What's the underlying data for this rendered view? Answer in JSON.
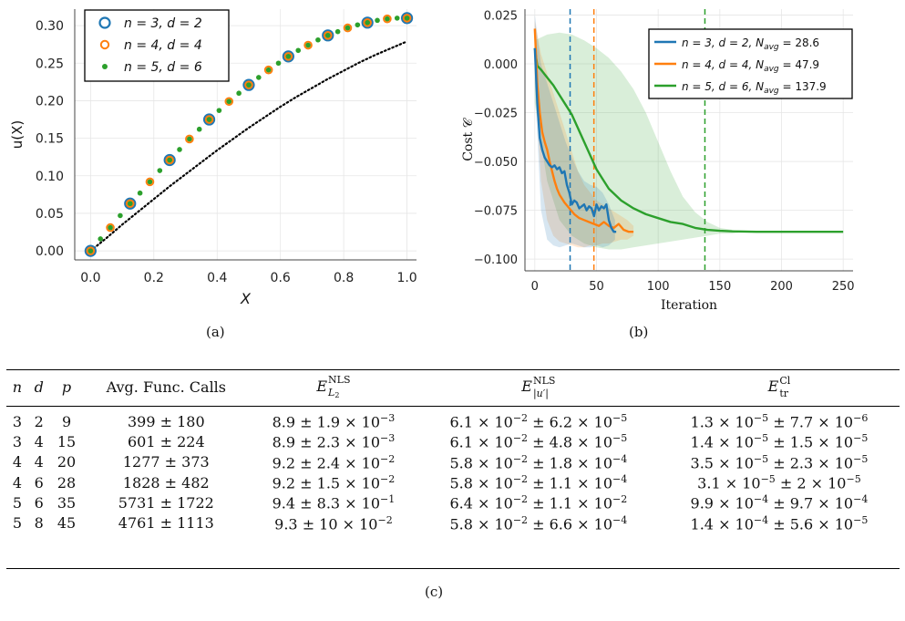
{
  "chart_data": [
    {
      "type": "scatter",
      "panel": "(a)",
      "xlabel": "X",
      "ylabel": "u(X)",
      "xlim": [
        -0.05,
        1.03
      ],
      "ylim": [
        -0.012,
        0.322
      ],
      "xticks": [
        "0.0",
        "0.2",
        "0.4",
        "0.6",
        "0.8",
        "1.0"
      ],
      "yticks": [
        "0.00",
        "0.05",
        "0.10",
        "0.15",
        "0.20",
        "0.25",
        "0.30"
      ],
      "legend": [
        "n = 3,  d = 2",
        "n = 4,  d = 4",
        "n = 5,  d = 6"
      ],
      "legend_position": "top-left",
      "series": [
        {
          "name": "n = 3,  d = 2",
          "marker": "open-circle",
          "color": "#1f77b4",
          "x": [
            0,
            0.125,
            0.25,
            0.375,
            0.5,
            0.625,
            0.75,
            0.875,
            1.0
          ],
          "y": [
            0.0,
            0.063,
            0.121,
            0.175,
            0.221,
            0.259,
            0.287,
            0.304,
            0.31
          ]
        },
        {
          "name": "n = 4,  d = 4",
          "marker": "open-circle",
          "color": "#ff7f0e",
          "x": [
            0,
            0.0625,
            0.125,
            0.1875,
            0.25,
            0.3125,
            0.375,
            0.4375,
            0.5,
            0.5625,
            0.625,
            0.6875,
            0.75,
            0.8125,
            0.875,
            0.9375,
            1.0
          ],
          "y": [
            0.0,
            0.031,
            0.063,
            0.092,
            0.121,
            0.149,
            0.175,
            0.199,
            0.221,
            0.241,
            0.259,
            0.274,
            0.287,
            0.297,
            0.304,
            0.309,
            0.31
          ]
        },
        {
          "name": "n = 5,  d = 6",
          "marker": "dot",
          "color": "#2ca02c",
          "x": [
            0,
            0.03125,
            0.0625,
            0.09375,
            0.125,
            0.15625,
            0.1875,
            0.21875,
            0.25,
            0.28125,
            0.3125,
            0.34375,
            0.375,
            0.40625,
            0.4375,
            0.46875,
            0.5,
            0.53125,
            0.5625,
            0.59375,
            0.625,
            0.65625,
            0.6875,
            0.71875,
            0.75,
            0.78125,
            0.8125,
            0.84375,
            0.875,
            0.90625,
            0.9375,
            0.96875,
            1.0
          ],
          "y": [
            0.0,
            0.016,
            0.031,
            0.047,
            0.063,
            0.077,
            0.092,
            0.107,
            0.121,
            0.135,
            0.149,
            0.162,
            0.175,
            0.187,
            0.199,
            0.21,
            0.221,
            0.231,
            0.241,
            0.25,
            0.259,
            0.267,
            0.274,
            0.281,
            0.287,
            0.292,
            0.297,
            0.301,
            0.304,
            0.307,
            0.309,
            0.31,
            0.31
          ]
        },
        {
          "marker": "dotted-line",
          "color": "#000000",
          "x": [
            0,
            0.05,
            0.1,
            0.15,
            0.2,
            0.25,
            0.3,
            0.35,
            0.4,
            0.45,
            0.5,
            0.55,
            0.6,
            0.65,
            0.7,
            0.75,
            0.8,
            0.85,
            0.9,
            0.95,
            1.0
          ],
          "y": [
            0.0,
            0.017,
            0.035,
            0.052,
            0.069,
            0.086,
            0.102,
            0.118,
            0.134,
            0.149,
            0.164,
            0.178,
            0.192,
            0.205,
            0.217,
            0.229,
            0.24,
            0.251,
            0.261,
            0.27,
            0.279
          ]
        }
      ]
    },
    {
      "type": "line",
      "panel": "(b)",
      "xlabel": "Iteration",
      "ylabel": "Cost 𝒞",
      "xlim": [
        -8,
        258
      ],
      "ylim": [
        -0.106,
        0.028
      ],
      "xticks": [
        "0",
        "50",
        "100",
        "150",
        "200",
        "250"
      ],
      "yticks": [
        "0.025",
        "0.000",
        "−0.025",
        "−0.050",
        "−0.075",
        "−0.100"
      ],
      "legend_position": "top-right",
      "series": [
        {
          "name": "n = 3,  d = 2,  N",
          "name_sub": "avg",
          "name_value": " = 28.6",
          "color": "#1f77b4",
          "vline": 28.6,
          "x": [
            0,
            2,
            4,
            6,
            8,
            10,
            12,
            14,
            16,
            18,
            20,
            22,
            24,
            26,
            28,
            30,
            32,
            34,
            36,
            38,
            40,
            42,
            44,
            46,
            48,
            50,
            52,
            54,
            56,
            58,
            60,
            62,
            64,
            66
          ],
          "y": [
            0.008,
            -0.02,
            -0.038,
            -0.044,
            -0.048,
            -0.05,
            -0.052,
            -0.053,
            -0.052,
            -0.054,
            -0.053,
            -0.056,
            -0.055,
            -0.062,
            -0.066,
            -0.072,
            -0.07,
            -0.071,
            -0.074,
            -0.073,
            -0.072,
            -0.075,
            -0.073,
            -0.074,
            -0.078,
            -0.072,
            -0.075,
            -0.073,
            -0.074,
            -0.072,
            -0.08,
            -0.084,
            -0.086,
            -0.086
          ],
          "band_x": [
            0,
            5,
            10,
            15,
            20,
            25,
            30,
            35,
            40,
            45,
            50,
            55,
            60,
            65
          ],
          "band_lo": [
            -0.01,
            -0.075,
            -0.09,
            -0.093,
            -0.094,
            -0.093,
            -0.092,
            -0.093,
            -0.094,
            -0.094,
            -0.093,
            -0.094,
            -0.093,
            -0.09
          ],
          "band_hi": [
            0.025,
            0.0,
            -0.01,
            -0.02,
            -0.03,
            -0.04,
            -0.048,
            -0.055,
            -0.06,
            -0.062,
            -0.063,
            -0.066,
            -0.072,
            -0.08
          ]
        },
        {
          "name": "n = 4,  d = 4,  N",
          "name_sub": "avg",
          "name_value": " = 47.9",
          "color": "#ff7f0e",
          "vline": 47.9,
          "x": [
            0,
            2,
            4,
            6,
            8,
            10,
            12,
            14,
            16,
            18,
            20,
            24,
            28,
            32,
            36,
            40,
            44,
            48,
            52,
            56,
            60,
            64,
            68,
            72,
            76,
            80
          ],
          "y": [
            0.018,
            -0.01,
            -0.025,
            -0.035,
            -0.04,
            -0.044,
            -0.05,
            -0.055,
            -0.06,
            -0.064,
            -0.067,
            -0.071,
            -0.074,
            -0.077,
            -0.079,
            -0.08,
            -0.081,
            -0.082,
            -0.083,
            -0.081,
            -0.083,
            -0.084,
            -0.082,
            -0.085,
            -0.086,
            -0.086
          ],
          "band_x": [
            0,
            5,
            10,
            15,
            20,
            25,
            30,
            35,
            40,
            45,
            50,
            55,
            60,
            65,
            70,
            75,
            80
          ],
          "band_lo": [
            -0.005,
            -0.06,
            -0.08,
            -0.088,
            -0.091,
            -0.092,
            -0.093,
            -0.094,
            -0.094,
            -0.093,
            -0.093,
            -0.092,
            -0.092,
            -0.091,
            -0.09,
            -0.09,
            -0.088
          ],
          "band_hi": [
            0.022,
            0.005,
            -0.005,
            -0.015,
            -0.025,
            -0.035,
            -0.045,
            -0.055,
            -0.062,
            -0.066,
            -0.07,
            -0.072,
            -0.074,
            -0.076,
            -0.078,
            -0.08,
            -0.083
          ]
        },
        {
          "name": "n = 5,  d = 6,  N",
          "name_sub": "avg",
          "name_value": " = 137.9",
          "color": "#2ca02c",
          "vline": 137.9,
          "x": [
            0,
            2,
            5,
            10,
            15,
            20,
            25,
            30,
            35,
            40,
            45,
            50,
            55,
            60,
            70,
            80,
            90,
            100,
            110,
            120,
            130,
            140,
            150,
            160,
            180,
            200,
            220,
            250
          ],
          "y": [
            0.008,
            -0.001,
            -0.003,
            -0.007,
            -0.011,
            -0.016,
            -0.021,
            -0.026,
            -0.033,
            -0.04,
            -0.047,
            -0.054,
            -0.059,
            -0.064,
            -0.07,
            -0.074,
            -0.077,
            -0.079,
            -0.081,
            -0.082,
            -0.084,
            -0.085,
            -0.0855,
            -0.0858,
            -0.086,
            -0.086,
            -0.086,
            -0.086
          ],
          "band_x": [
            0,
            10,
            20,
            30,
            40,
            50,
            60,
            70,
            80,
            90,
            100,
            110,
            120,
            130,
            140,
            150,
            160,
            170
          ],
          "band_lo": [
            -0.02,
            -0.06,
            -0.08,
            -0.088,
            -0.092,
            -0.094,
            -0.095,
            -0.095,
            -0.094,
            -0.093,
            -0.092,
            -0.091,
            -0.09,
            -0.089,
            -0.088,
            -0.087,
            -0.087,
            -0.086
          ],
          "band_hi": [
            0.012,
            0.015,
            0.016,
            0.015,
            0.012,
            0.008,
            0.003,
            -0.004,
            -0.013,
            -0.025,
            -0.04,
            -0.055,
            -0.068,
            -0.076,
            -0.081,
            -0.084,
            -0.085,
            -0.086
          ]
        }
      ]
    },
    {
      "type": "table",
      "panel": "(c)",
      "headers": {
        "n": "n",
        "d": "d",
        "p": "p",
        "calls": "Avg. Func. Calls",
        "e1_base": "E",
        "e1_sup": "NLS",
        "e1_sub": "L",
        "e1_subsub": "2",
        "e2_base": "E",
        "e2_sup": "NLS",
        "e2_sub": "|u′|",
        "e3_base": "E",
        "e3_sup": "Cl",
        "e3_sub": "tr"
      },
      "rows": [
        {
          "n": "3",
          "d": "2",
          "p": "9",
          "calls": "399 ± 180",
          "e1": "8.9 ± 1.9 × 10",
          "e1x": "−3",
          "e2": "6.1 × 10",
          "e2x": "−2",
          "e2b": " ± 6.2 × 10",
          "e2bx": "−5",
          "e3": "1.3 × 10",
          "e3x": "−5",
          "e3b": " ± 7.7 × 10",
          "e3bx": "−6"
        },
        {
          "n": "3",
          "d": "4",
          "p": "15",
          "calls": "601 ± 224",
          "e1": "8.9 ± 2.3 × 10",
          "e1x": "−3",
          "e2": "6.1 × 10",
          "e2x": "−2",
          "e2b": " ± 4.8 × 10",
          "e2bx": "−5",
          "e3": "1.4 × 10",
          "e3x": "−5",
          "e3b": " ± 1.5 × 10",
          "e3bx": "−5"
        },
        {
          "n": "4",
          "d": "4",
          "p": "20",
          "calls": "1277 ± 373",
          "e1": "9.2 ± 2.4 × 10",
          "e1x": "−2",
          "e2": "5.8 × 10",
          "e2x": "−2",
          "e2b": " ± 1.8 × 10",
          "e2bx": "−4",
          "e3": "3.5 × 10",
          "e3x": "−5",
          "e3b": " ± 2.3 × 10",
          "e3bx": "−5"
        },
        {
          "n": "4",
          "d": "6",
          "p": "28",
          "calls": "1828 ± 482",
          "e1": "9.2 ± 1.5 × 10",
          "e1x": "−2",
          "e2": "5.8 × 10",
          "e2x": "−2",
          "e2b": " ± 1.1 × 10",
          "e2bx": "−4",
          "e3": "3.1 × 10",
          "e3x": "−5",
          "e3b": " ± 2 × 10",
          "e3bx": "−5"
        },
        {
          "n": "5",
          "d": "6",
          "p": "35",
          "calls": "5731 ± 1722",
          "e1": "9.4 ± 8.3 × 10",
          "e1x": "−1",
          "e2": "6.4 × 10",
          "e2x": "−2",
          "e2b": " ± 1.1 × 10",
          "e2bx": "−2",
          "e3": "9.9 × 10",
          "e3x": "−4",
          "e3b": " ± 9.7 × 10",
          "e3bx": "−4"
        },
        {
          "n": "5",
          "d": "8",
          "p": "45",
          "calls": "4761 ± 1113",
          "e1": "9.3 ± 10 × 10",
          "e1x": "−2",
          "e2": "5.8 × 10",
          "e2x": "−2",
          "e2b": " ± 6.6 × 10",
          "e2bx": "−4",
          "e3": "1.4 × 10",
          "e3x": "−4",
          "e3b": " ± 5.6 × 10",
          "e3bx": "−5"
        }
      ]
    }
  ],
  "captions": {
    "a": "(a)",
    "b": "(b)",
    "c": "(c)"
  }
}
